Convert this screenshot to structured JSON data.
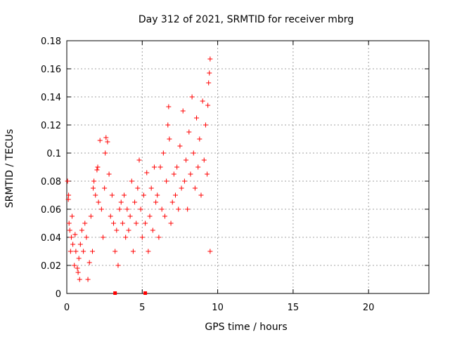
{
  "chart_data": {
    "type": "scatter",
    "title": "Day 312 of 2021, SRMTID for receiver mbrg",
    "xlabel": "GPS time / hours",
    "ylabel": "SRMTID / TECUs",
    "xlim": [
      0,
      24
    ],
    "ylim": [
      0,
      0.18
    ],
    "xticks": [
      0,
      5,
      10,
      15,
      20
    ],
    "xtick_labels": [
      "0",
      "5",
      "10",
      "15",
      "20"
    ],
    "yticks": [
      0,
      0.02,
      0.04,
      0.06,
      0.08,
      0.1,
      0.12,
      0.14,
      0.16,
      0.18
    ],
    "ytick_labels": [
      "0",
      "0.02",
      "0.04",
      "0.06",
      "0.08",
      "0.1",
      "0.12",
      "0.14",
      "0.16",
      "0.18"
    ],
    "grid": true,
    "marker": "plus",
    "color": "#ff0000",
    "series": [
      {
        "name": "SRMTID",
        "x_range": [
          0,
          9.55
        ],
        "points": [
          [
            0.05,
            0.08
          ],
          [
            0.1,
            0.067
          ],
          [
            0.12,
            0.07
          ],
          [
            0.15,
            0.05
          ],
          [
            0.2,
            0.045
          ],
          [
            0.25,
            0.03
          ],
          [
            0.3,
            0.04
          ],
          [
            0.35,
            0.055
          ],
          [
            0.4,
            0.035
          ],
          [
            0.5,
            0.02
          ],
          [
            0.55,
            0.042
          ],
          [
            0.6,
            0.03
          ],
          [
            0.7,
            0.018
          ],
          [
            0.75,
            0.015
          ],
          [
            0.8,
            0.025
          ],
          [
            0.85,
            0.01
          ],
          [
            0.9,
            0.035
          ],
          [
            1.0,
            0.045
          ],
          [
            1.1,
            0.03
          ],
          [
            1.2,
            0.05
          ],
          [
            1.3,
            0.04
          ],
          [
            1.4,
            0.01
          ],
          [
            1.5,
            0.022
          ],
          [
            1.6,
            0.055
          ],
          [
            1.7,
            0.03
          ],
          [
            1.75,
            0.075
          ],
          [
            1.8,
            0.08
          ],
          [
            1.9,
            0.07
          ],
          [
            2.0,
            0.088
          ],
          [
            2.05,
            0.09
          ],
          [
            2.1,
            0.065
          ],
          [
            2.2,
            0.109
          ],
          [
            2.3,
            0.06
          ],
          [
            2.4,
            0.04
          ],
          [
            2.5,
            0.075
          ],
          [
            2.55,
            0.1
          ],
          [
            2.6,
            0.111
          ],
          [
            2.7,
            0.108
          ],
          [
            2.8,
            0.085
          ],
          [
            2.9,
            0.055
          ],
          [
            3.0,
            0.07
          ],
          [
            3.1,
            0.05
          ],
          [
            3.2,
            0.03
          ],
          [
            3.3,
            0.045
          ],
          [
            3.4,
            0.02
          ],
          [
            3.5,
            0.06
          ],
          [
            3.6,
            0.065
          ],
          [
            3.7,
            0.05
          ],
          [
            3.8,
            0.07
          ],
          [
            3.9,
            0.04
          ],
          [
            4.0,
            0.06
          ],
          [
            4.1,
            0.045
          ],
          [
            4.2,
            0.055
          ],
          [
            4.3,
            0.08
          ],
          [
            4.4,
            0.03
          ],
          [
            4.5,
            0.065
          ],
          [
            4.6,
            0.05
          ],
          [
            4.7,
            0.075
          ],
          [
            4.8,
            0.095
          ],
          [
            4.9,
            0.06
          ],
          [
            5.0,
            0.04
          ],
          [
            5.1,
            0.07
          ],
          [
            5.2,
            0.05
          ],
          [
            5.3,
            0.086
          ],
          [
            5.4,
            0.03
          ],
          [
            5.5,
            0.055
          ],
          [
            5.6,
            0.075
          ],
          [
            5.7,
            0.045
          ],
          [
            5.8,
            0.09
          ],
          [
            5.9,
            0.065
          ],
          [
            6.0,
            0.07
          ],
          [
            6.1,
            0.04
          ],
          [
            6.2,
            0.09
          ],
          [
            6.3,
            0.06
          ],
          [
            6.4,
            0.1
          ],
          [
            6.5,
            0.055
          ],
          [
            6.6,
            0.08
          ],
          [
            6.7,
            0.12
          ],
          [
            6.75,
            0.133
          ],
          [
            6.8,
            0.11
          ],
          [
            6.9,
            0.05
          ],
          [
            7.0,
            0.065
          ],
          [
            7.1,
            0.085
          ],
          [
            7.2,
            0.07
          ],
          [
            7.3,
            0.09
          ],
          [
            7.4,
            0.06
          ],
          [
            7.5,
            0.105
          ],
          [
            7.6,
            0.075
          ],
          [
            7.7,
            0.13
          ],
          [
            7.8,
            0.08
          ],
          [
            7.9,
            0.095
          ],
          [
            8.0,
            0.06
          ],
          [
            8.1,
            0.115
          ],
          [
            8.2,
            0.085
          ],
          [
            8.3,
            0.14
          ],
          [
            8.4,
            0.1
          ],
          [
            8.5,
            0.075
          ],
          [
            8.6,
            0.125
          ],
          [
            8.7,
            0.09
          ],
          [
            8.8,
            0.11
          ],
          [
            8.9,
            0.07
          ],
          [
            9.0,
            0.137
          ],
          [
            9.1,
            0.095
          ],
          [
            9.2,
            0.12
          ],
          [
            9.3,
            0.085
          ],
          [
            9.35,
            0.134
          ],
          [
            9.4,
            0.15
          ],
          [
            9.45,
            0.157
          ],
          [
            9.5,
            0.167
          ],
          [
            9.5,
            0.03
          ]
        ]
      }
    ],
    "zero_markers_x": [
      3.2,
      5.2
    ]
  }
}
